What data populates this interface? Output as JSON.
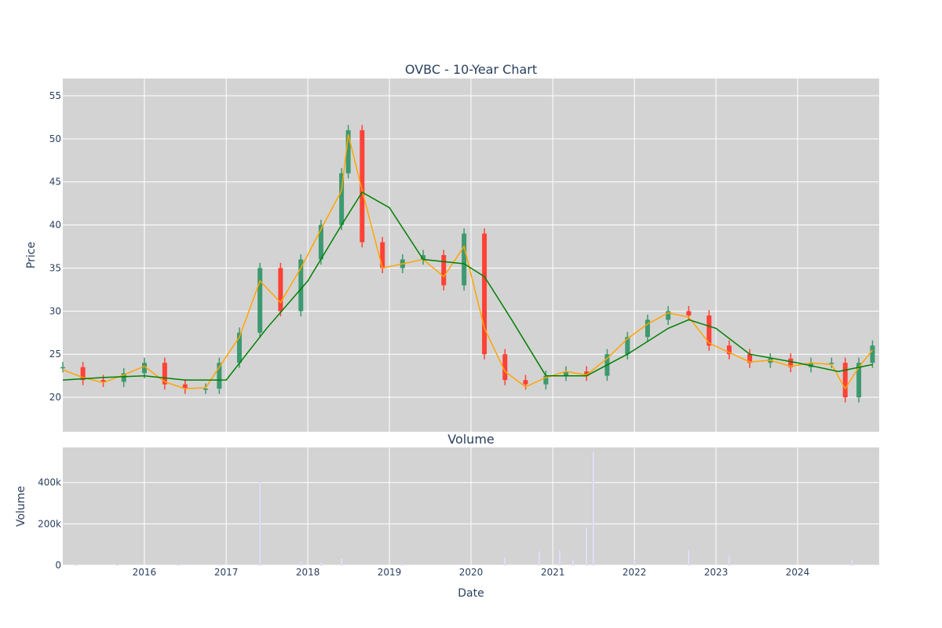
{
  "chart_data": [
    {
      "type": "candlestick",
      "title": "OVBC - 10-Year Chart",
      "ylabel": "Price",
      "ylim": [
        16,
        57
      ],
      "yticks": [
        20,
        25,
        30,
        35,
        40,
        45,
        50,
        55
      ],
      "x_range": [
        "2015-01-01",
        "2024-12-31"
      ],
      "grid": true,
      "background": "#d3d3d3",
      "colors": {
        "up": "#3d9970",
        "down": "#ff4136",
        "ma_short": "#ffa500",
        "ma_long": "#008000"
      },
      "series": [
        {
          "type": "candlestick",
          "x": [
            "2015-01",
            "2015-04",
            "2015-07",
            "2015-10",
            "2016-01",
            "2016-04",
            "2016-07",
            "2016-10",
            "2016-12",
            "2017-03",
            "2017-06",
            "2017-09",
            "2017-12",
            "2018-03",
            "2018-06",
            "2018-07",
            "2018-09",
            "2018-12",
            "2019-03",
            "2019-06",
            "2019-09",
            "2019-12",
            "2020-03",
            "2020-06",
            "2020-09",
            "2020-12",
            "2021-03",
            "2021-06",
            "2021-09",
            "2021-12",
            "2022-03",
            "2022-06",
            "2022-09",
            "2022-12",
            "2023-03",
            "2023-06",
            "2023-09",
            "2023-12",
            "2024-03",
            "2024-06",
            "2024-08",
            "2024-10",
            "2024-12"
          ],
          "close": [
            23.5,
            22.0,
            21.8,
            22.8,
            24.0,
            21.5,
            21.0,
            21.0,
            24.0,
            27.5,
            35.0,
            30.0,
            36.0,
            40.0,
            46.0,
            51.0,
            38.0,
            35.0,
            36.0,
            36.5,
            33.0,
            39.0,
            25.0,
            22.0,
            21.5,
            22.5,
            23.0,
            22.5,
            25.0,
            27.0,
            29.0,
            30.0,
            29.5,
            26.0,
            25.0,
            24.0,
            24.5,
            23.5,
            24.0,
            24.0,
            20.0,
            24.0,
            26.0
          ]
        },
        {
          "type": "line",
          "x": [
            "2015-01",
            "2015-04",
            "2015-07",
            "2015-10",
            "2016-01",
            "2016-04",
            "2016-07",
            "2016-10",
            "2016-12",
            "2017-03",
            "2017-06",
            "2017-09",
            "2017-12",
            "2018-03",
            "2018-06",
            "2018-07",
            "2018-09",
            "2018-12",
            "2019-03",
            "2019-06",
            "2019-09",
            "2019-12",
            "2020-03",
            "2020-06",
            "2020-09",
            "2020-12",
            "2021-03",
            "2021-06",
            "2021-09",
            "2021-12",
            "2022-03",
            "2022-06",
            "2022-09",
            "2022-12",
            "2023-03",
            "2023-06",
            "2023-09",
            "2023-12",
            "2024-03",
            "2024-06",
            "2024-08",
            "2024-10",
            "2024-12"
          ],
          "y": [
            23.2,
            22.3,
            21.7,
            22.6,
            23.6,
            21.8,
            21.0,
            21.1,
            23.5,
            27.0,
            33.5,
            31.0,
            35.0,
            39.5,
            44.0,
            50.5,
            44.0,
            35.0,
            35.5,
            36.0,
            34.0,
            37.5,
            28.0,
            23.0,
            21.2,
            22.3,
            23.0,
            22.6,
            24.5,
            26.8,
            28.5,
            29.8,
            29.3,
            26.3,
            25.2,
            24.1,
            24.3,
            23.6,
            24.0,
            23.8,
            21.0,
            23.5,
            25.5
          ]
        },
        {
          "type": "line",
          "x": [
            "2015-01",
            "2015-07",
            "2016-01",
            "2016-07",
            "2017-01",
            "2017-07",
            "2018-01",
            "2018-06",
            "2018-09",
            "2019-01",
            "2019-06",
            "2019-12",
            "2020-03",
            "2020-07",
            "2020-12",
            "2021-06",
            "2021-12",
            "2022-06",
            "2022-09",
            "2023-01",
            "2023-06",
            "2024-01",
            "2024-07",
            "2024-12"
          ],
          "y": [
            22.0,
            22.3,
            22.5,
            22.0,
            22.0,
            28.0,
            33.5,
            40.0,
            43.8,
            42.0,
            36.0,
            35.5,
            34.0,
            29.0,
            22.5,
            22.5,
            25.0,
            28.0,
            29.0,
            28.0,
            25.0,
            24.0,
            23.0,
            23.8
          ]
        }
      ]
    },
    {
      "type": "bar",
      "title": "Volume",
      "xlabel": "Date",
      "ylabel": "Volume",
      "ylim": [
        0,
        570000
      ],
      "yticks": [
        0,
        200000,
        400000
      ],
      "ytick_labels": [
        "0",
        "200k",
        "400k"
      ],
      "xtick_labels": [
        "2016",
        "2017",
        "2018",
        "2019",
        "2020",
        "2021",
        "2022",
        "2023",
        "2024"
      ],
      "bar_color": "#e6e6fa",
      "grid": true,
      "x": [
        "2015-03",
        "2015-09",
        "2016-06",
        "2016-12",
        "2017-06",
        "2017-12",
        "2018-03",
        "2018-06",
        "2019-03",
        "2020-06",
        "2020-11",
        "2021-02",
        "2021-04",
        "2021-06",
        "2021-07",
        "2022-01",
        "2022-09",
        "2023-03",
        "2024-09"
      ],
      "values": [
        5000,
        4000,
        6000,
        8000,
        400000,
        20000,
        15000,
        35000,
        12000,
        40000,
        70000,
        75000,
        30000,
        185000,
        550000,
        25000,
        75000,
        45000,
        30000
      ]
    }
  ]
}
